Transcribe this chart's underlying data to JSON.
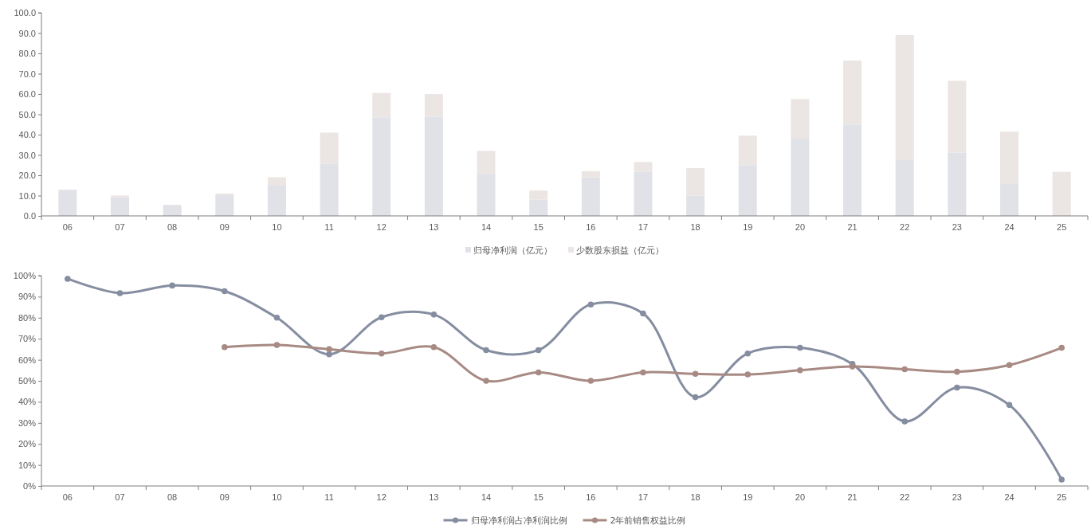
{
  "chart_data": [
    {
      "type": "bar",
      "stacked": true,
      "categories": [
        "06",
        "07",
        "08",
        "09",
        "10",
        "11",
        "12",
        "13",
        "14",
        "15",
        "16",
        "17",
        "18",
        "19",
        "20",
        "21",
        "22",
        "23",
        "24",
        "25"
      ],
      "series": [
        {
          "name": "归母净利润（亿元）",
          "color": "#e1e2e7",
          "values": [
            12.8,
            9.2,
            5.4,
            10.2,
            15.2,
            25.7,
            48.5,
            48.8,
            20.7,
            8,
            19,
            21.7,
            10,
            25,
            38,
            45,
            27.5,
            31.2,
            16,
            null
          ]
        },
        {
          "name": "少数股东损益（亿元）",
          "color": "#ebe5e3",
          "values": [
            0.2,
            0.8,
            null,
            0.8,
            3.8,
            15.3,
            12,
            11.2,
            11.3,
            4.5,
            3,
            4.8,
            13.5,
            14.5,
            19.5,
            31.5,
            61.5,
            35.3,
            25.5,
            21.7
          ]
        }
      ],
      "ylim": [
        0,
        100
      ],
      "yticks": [
        {
          "value": 0,
          "label": "0.0"
        },
        {
          "value": 10,
          "label": "10.0"
        },
        {
          "value": 20,
          "label": "20.0"
        },
        {
          "value": 30,
          "label": "30.0"
        },
        {
          "value": 40,
          "label": "40.0"
        },
        {
          "value": 50,
          "label": "50.0"
        },
        {
          "value": 60,
          "label": "60.0"
        },
        {
          "value": 70,
          "label": "70.0"
        },
        {
          "value": 80,
          "label": "80.0"
        },
        {
          "value": 90,
          "label": "90.0"
        },
        {
          "value": 100,
          "label": "100.0"
        }
      ],
      "grid": false,
      "legend": "bottom"
    },
    {
      "type": "line",
      "marker": "circle",
      "line_style": "solid",
      "categories": [
        "06",
        "07",
        "08",
        "09",
        "10",
        "11",
        "12",
        "13",
        "14",
        "15",
        "16",
        "17",
        "18",
        "19",
        "20",
        "21",
        "22",
        "23",
        "24",
        "25"
      ],
      "series": [
        {
          "name": "归母净利润占净利润比例",
          "color": "#858da0",
          "values": [
            98.5,
            91.7,
            95.3,
            92.6,
            80,
            62.6,
            80.2,
            81.5,
            64.6,
            64.6,
            86.3,
            82,
            42.2,
            63,
            65.7,
            58,
            30.7,
            46.8,
            38.5,
            3
          ]
        },
        {
          "name": "2年前销售权益比例",
          "color": "#a88a84",
          "values": [
            null,
            null,
            null,
            66,
            67,
            65,
            63,
            66,
            50,
            54,
            50,
            54,
            53.3,
            53,
            55,
            56.8,
            55.5,
            54.3,
            57.5,
            65.7
          ]
        }
      ],
      "ylim": [
        0,
        100
      ],
      "yticks": [
        {
          "value": 0,
          "label": "0%"
        },
        {
          "value": 10,
          "label": "10%"
        },
        {
          "value": 20,
          "label": "20%"
        },
        {
          "value": 30,
          "label": "30%"
        },
        {
          "value": 40,
          "label": "40%"
        },
        {
          "value": 50,
          "label": "50%"
        },
        {
          "value": 60,
          "label": "60%"
        },
        {
          "value": 70,
          "label": "70%"
        },
        {
          "value": 80,
          "label": "80%"
        },
        {
          "value": 90,
          "label": "90%"
        },
        {
          "value": 100,
          "label": "100%"
        }
      ],
      "grid": false,
      "legend": "bottom"
    }
  ]
}
